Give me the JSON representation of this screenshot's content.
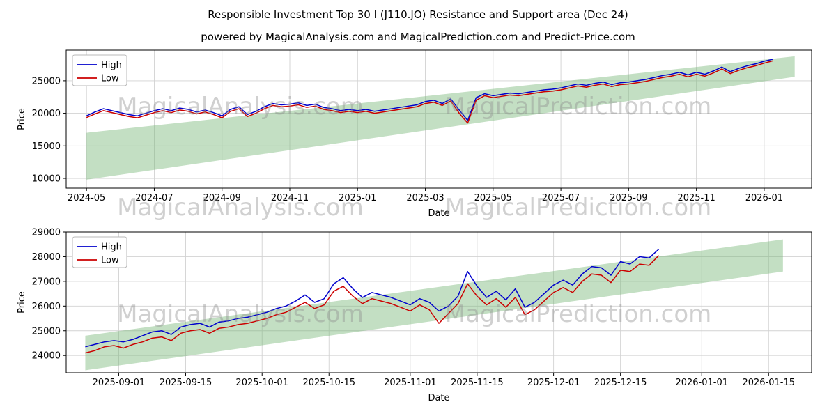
{
  "page": {
    "title": "Responsible Investment Top 30 I (J110.JO) Resistance and Support area (Dec 24)",
    "subtitle": "powered by MagicalAnalysis.com and MagicalPrediction.com and Predict-Price.com"
  },
  "watermarks": [
    "MagicalAnalysis.com",
    "MagicalPrediction.com"
  ],
  "legend": {
    "high_label": "High",
    "low_label": "Low"
  },
  "colors": {
    "high": "#0000cc",
    "low": "#cc0000",
    "band": "#7ab87a",
    "grid": "#d2d2d2",
    "spine": "#000000",
    "watermark": "#8e8e8e"
  },
  "chart_data": [
    {
      "type": "line",
      "title": "",
      "xlabel": "Date",
      "ylabel": "Price",
      "x_unit": "months since 2024-05-01",
      "xlim": [
        -0.6,
        21.4
      ],
      "ylim": [
        8500,
        29700
      ],
      "yticks": [
        10000,
        15000,
        20000,
        25000
      ],
      "xticks": [
        {
          "pos": 0,
          "label": "2024-05"
        },
        {
          "pos": 2,
          "label": "2024-07"
        },
        {
          "pos": 4,
          "label": "2024-09"
        },
        {
          "pos": 6,
          "label": "2024-11"
        },
        {
          "pos": 8,
          "label": "2025-01"
        },
        {
          "pos": 10,
          "label": "2025-03"
        },
        {
          "pos": 12,
          "label": "2025-05"
        },
        {
          "pos": 14,
          "label": "2025-07"
        },
        {
          "pos": 16,
          "label": "2025-09"
        },
        {
          "pos": 18,
          "label": "2025-11"
        },
        {
          "pos": 20,
          "label": "2026-01"
        }
      ],
      "band": {
        "x": [
          0,
          20.9
        ],
        "upper": [
          17000,
          28750
        ],
        "lower": [
          9800,
          25600
        ]
      },
      "series": [
        {
          "name": "High",
          "color_key": "high",
          "x_start": 0,
          "x_step": 0.25,
          "values": [
            19600,
            20200,
            20700,
            20400,
            20100,
            19800,
            19600,
            20000,
            20400,
            20700,
            20400,
            20800,
            20600,
            20200,
            20500,
            20100,
            19600,
            20600,
            21000,
            19800,
            20300,
            21000,
            21500,
            21300,
            21400,
            21600,
            21200,
            21400,
            20900,
            20700,
            20400,
            20600,
            20400,
            20600,
            20300,
            20500,
            20700,
            20900,
            21100,
            21300,
            21800,
            22000,
            21500,
            22200,
            20500,
            18900,
            22400,
            23000,
            22700,
            22900,
            23100,
            23000,
            23200,
            23400,
            23600,
            23700,
            23900,
            24200,
            24500,
            24300,
            24600,
            24800,
            24400,
            24700,
            24800,
            25000,
            25200,
            25500,
            25800,
            26000,
            26300,
            25900,
            26300,
            26000,
            26500,
            27100,
            26400,
            26900,
            27300,
            27600,
            28000,
            28300
          ]
        },
        {
          "name": "Low",
          "color_key": "low",
          "x_start": 0,
          "x_step": 0.25,
          "values": [
            19350,
            19900,
            20400,
            20100,
            19800,
            19500,
            19300,
            19700,
            20100,
            20400,
            20100,
            20500,
            20300,
            19900,
            20200,
            19800,
            19300,
            20300,
            20700,
            19500,
            20000,
            20700,
            21200,
            21000,
            21100,
            21300,
            20900,
            21100,
            20600,
            20400,
            20100,
            20300,
            20100,
            20300,
            20000,
            20200,
            20400,
            20600,
            20800,
            21000,
            21500,
            21700,
            21200,
            21900,
            20000,
            18500,
            22000,
            22700,
            22400,
            22600,
            22800,
            22700,
            22900,
            23100,
            23300,
            23400,
            23600,
            23900,
            24200,
            24000,
            24300,
            24500,
            24100,
            24400,
            24500,
            24700,
            24900,
            25200,
            25500,
            25700,
            26000,
            25600,
            26000,
            25700,
            26200,
            26800,
            26100,
            26600,
            27000,
            27300,
            27700,
            28050
          ]
        }
      ]
    },
    {
      "type": "line",
      "title": "",
      "xlabel": "Date",
      "ylabel": "Price",
      "x_unit": "days since 2025-08-25",
      "xlim": [
        -4,
        152
      ],
      "ylim": [
        23300,
        29000
      ],
      "yticks": [
        24000,
        25000,
        26000,
        27000,
        28000,
        29000
      ],
      "xticks": [
        {
          "pos": 7,
          "label": "2025-09-01"
        },
        {
          "pos": 21,
          "label": "2025-09-15"
        },
        {
          "pos": 37,
          "label": "2025-10-01"
        },
        {
          "pos": 51,
          "label": "2025-10-15"
        },
        {
          "pos": 68,
          "label": "2025-11-01"
        },
        {
          "pos": 82,
          "label": "2025-11-15"
        },
        {
          "pos": 98,
          "label": "2025-12-01"
        },
        {
          "pos": 112,
          "label": "2025-12-15"
        },
        {
          "pos": 129,
          "label": "2026-01-01"
        },
        {
          "pos": 143,
          "label": "2026-01-15"
        }
      ],
      "band": {
        "x": [
          0,
          146
        ],
        "upper": [
          24800,
          28700
        ],
        "lower": [
          23400,
          27400
        ]
      },
      "series": [
        {
          "name": "High",
          "color_key": "high",
          "x_start": 0,
          "x_step": 2,
          "values": [
            24350,
            24450,
            24550,
            24600,
            24550,
            24650,
            24800,
            24950,
            25000,
            24850,
            25150,
            25250,
            25300,
            25150,
            25350,
            25400,
            25500,
            25550,
            25650,
            25750,
            25900,
            26000,
            26200,
            26450,
            26150,
            26300,
            26900,
            27150,
            26700,
            26350,
            26550,
            26450,
            26350,
            26200,
            26050,
            26300,
            26150,
            25800,
            26000,
            26400,
            27400,
            26800,
            26350,
            26600,
            26250,
            26700,
            25950,
            26150,
            26500,
            26850,
            27050,
            26850,
            27300,
            27600,
            27550,
            27250,
            27800,
            27700,
            28000,
            27950,
            28300
          ]
        },
        {
          "name": "Low",
          "color_key": "low",
          "x_start": 0,
          "x_step": 2,
          "values": [
            24100,
            24200,
            24350,
            24400,
            24300,
            24450,
            24550,
            24700,
            24750,
            24600,
            24900,
            25000,
            25050,
            24900,
            25100,
            25150,
            25250,
            25300,
            25400,
            25500,
            25650,
            25750,
            25950,
            26150,
            25900,
            26050,
            26600,
            26800,
            26400,
            26100,
            26300,
            26200,
            26100,
            25950,
            25800,
            26050,
            25850,
            25300,
            25700,
            26100,
            26900,
            26400,
            26050,
            26300,
            25950,
            26350,
            25650,
            25850,
            26200,
            26550,
            26750,
            26550,
            27000,
            27300,
            27250,
            26950,
            27450,
            27400,
            27700,
            27650,
            28050
          ]
        }
      ]
    }
  ]
}
